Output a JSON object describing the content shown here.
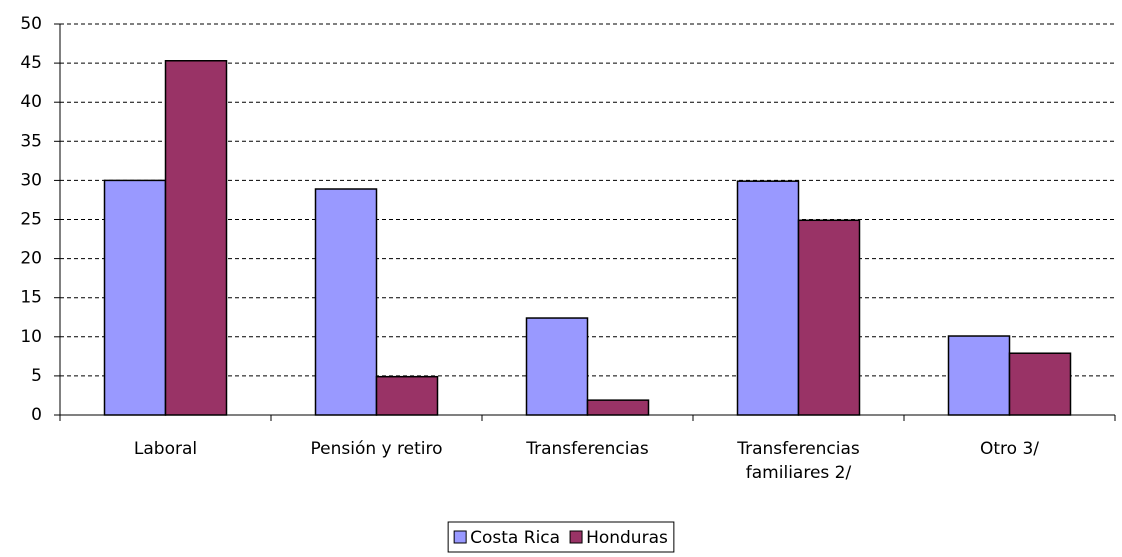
{
  "chart_data": {
    "type": "bar",
    "categories": [
      "Laboral",
      "Pensión y retiro",
      "Transferencias",
      "Transferencias familiares 2/",
      "Otro 3/"
    ],
    "series": [
      {
        "name": "Costa Rica",
        "color": "#9999ff",
        "values": [
          30.0,
          28.9,
          12.4,
          29.9,
          10.1
        ]
      },
      {
        "name": "Honduras",
        "color": "#993366",
        "values": [
          45.3,
          4.9,
          1.9,
          24.9,
          7.9
        ]
      }
    ],
    "ylim": [
      0,
      50
    ],
    "yticks": [
      0,
      5,
      10,
      15,
      20,
      25,
      30,
      35,
      40,
      45,
      50
    ],
    "grid": true,
    "legend": "bottom"
  }
}
